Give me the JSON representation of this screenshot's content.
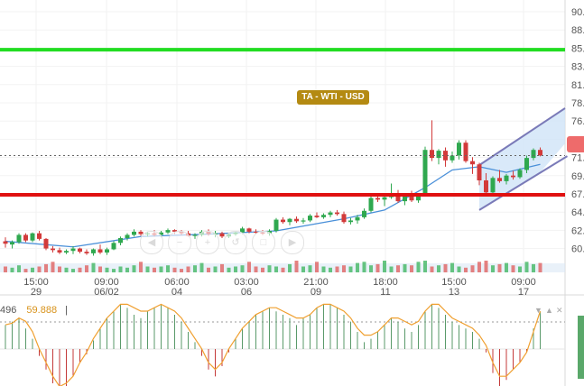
{
  "chart_title": "TA - WTI - USD",
  "y_axis": {
    "ticks": [
      "90.",
      "88.",
      "85.",
      "83.",
      "81.",
      "78.",
      "76.",
      "74.",
      "71.",
      "69.",
      "67.",
      "64.",
      "62.",
      "60."
    ]
  },
  "x_axis": {
    "ticks": [
      {
        "time": "15:00",
        "date": "29"
      },
      {
        "time": "09:00",
        "date": "06/02"
      },
      {
        "time": "06:00",
        "date": "04"
      },
      {
        "time": "03:00",
        "date": "06"
      },
      {
        "time": "21:00",
        "date": "09"
      },
      {
        "time": "18:00",
        "date": "11"
      },
      {
        "time": "15:00",
        "date": "13"
      },
      {
        "time": "09:00",
        "date": "17"
      }
    ]
  },
  "oscillator": {
    "value_1": "496",
    "value_2": "59.888",
    "separator": "|"
  },
  "colors": {
    "resistance": "#22dd22",
    "support": "#e01010",
    "bull": "#2fa84f",
    "bear": "#d23a3a",
    "moving_average": "#4a90d9",
    "channel": "#7a7ab8",
    "channel_fill": "#cfe4f7",
    "oscillator_line": "#f0a030",
    "badge": "#b48a12"
  },
  "nav_controls": [
    "first-icon",
    "zoom-out-icon",
    "zoom-in-icon",
    "zoom-reset-icon",
    "zoom-fit-icon",
    "last-icon"
  ],
  "chart_data": {
    "type": "candlestick",
    "y_range": [
      58.8,
      91.2
    ],
    "levels": {
      "resistance": 85.9,
      "support": 67.8,
      "last_price": 72.7
    },
    "candles": [
      [
        62.0,
        62.5,
        61.2,
        61.7
      ],
      [
        61.6,
        62.1,
        61.1,
        61.9
      ],
      [
        61.9,
        63.0,
        61.7,
        62.8
      ],
      [
        62.8,
        63.0,
        61.9,
        62.1
      ],
      [
        62.1,
        63.1,
        61.9,
        63.0
      ],
      [
        63.0,
        63.3,
        62.1,
        62.3
      ],
      [
        62.3,
        62.4,
        60.9,
        61.1
      ],
      [
        61.1,
        61.4,
        60.6,
        60.9
      ],
      [
        60.9,
        61.2,
        60.4,
        60.6
      ],
      [
        60.6,
        61.0,
        60.4,
        60.8
      ],
      [
        60.8,
        61.4,
        60.4,
        61.1
      ],
      [
        61.1,
        61.2,
        60.5,
        60.7
      ],
      [
        60.7,
        61.0,
        60.3,
        60.5
      ],
      [
        60.5,
        61.1,
        60.2,
        61.0
      ],
      [
        61.0,
        61.6,
        60.4,
        60.6
      ],
      [
        60.6,
        61.2,
        60.3,
        61.0
      ],
      [
        61.0,
        62.0,
        60.9,
        61.8
      ],
      [
        61.8,
        62.6,
        61.5,
        62.4
      ],
      [
        62.4,
        63.0,
        62.1,
        62.8
      ],
      [
        62.8,
        63.5,
        62.6,
        63.2
      ],
      [
        63.2,
        63.4,
        62.7,
        62.9
      ],
      [
        62.9,
        63.2,
        62.6,
        63.0
      ],
      [
        63.0,
        63.4,
        62.6,
        62.8
      ],
      [
        62.8,
        63.3,
        62.5,
        63.1
      ],
      [
        63.1,
        63.6,
        62.9,
        63.4
      ],
      [
        63.4,
        63.5,
        62.9,
        63.2
      ],
      [
        63.2,
        63.4,
        62.8,
        63.0
      ],
      [
        63.0,
        63.3,
        62.6,
        62.7
      ],
      [
        62.7,
        63.0,
        62.3,
        62.8
      ],
      [
        62.8,
        63.4,
        62.6,
        63.2
      ],
      [
        63.2,
        63.5,
        62.7,
        62.9
      ],
      [
        62.9,
        63.3,
        62.5,
        63.0
      ],
      [
        63.0,
        63.2,
        62.4,
        62.6
      ],
      [
        62.6,
        63.0,
        62.4,
        62.9
      ],
      [
        62.9,
        63.3,
        62.7,
        63.1
      ],
      [
        63.1,
        63.8,
        62.9,
        63.6
      ],
      [
        63.6,
        63.7,
        63.0,
        63.2
      ],
      [
        63.2,
        63.5,
        62.9,
        63.1
      ],
      [
        63.1,
        63.4,
        62.8,
        63.0
      ],
      [
        63.0,
        63.5,
        62.7,
        63.3
      ],
      [
        63.3,
        64.9,
        63.1,
        64.7
      ],
      [
        64.7,
        65.0,
        64.2,
        64.4
      ],
      [
        64.4,
        64.9,
        64.0,
        64.8
      ],
      [
        64.8,
        65.1,
        64.3,
        64.5
      ],
      [
        64.5,
        64.9,
        64.2,
        64.6
      ],
      [
        64.6,
        65.4,
        64.4,
        65.2
      ],
      [
        65.2,
        65.6,
        64.9,
        65.0
      ],
      [
        65.0,
        65.5,
        64.8,
        65.3
      ],
      [
        65.3,
        65.8,
        65.0,
        65.6
      ],
      [
        65.6,
        65.9,
        65.2,
        65.4
      ],
      [
        65.4,
        65.7,
        64.2,
        64.4
      ],
      [
        64.4,
        64.9,
        64.1,
        64.6
      ],
      [
        64.6,
        65.3,
        64.2,
        65.0
      ],
      [
        65.0,
        66.1,
        64.8,
        65.8
      ],
      [
        65.8,
        67.7,
        65.6,
        67.4
      ],
      [
        67.4,
        67.8,
        66.9,
        67.2
      ],
      [
        67.2,
        67.9,
        66.4,
        67.5
      ],
      [
        67.5,
        69.2,
        67.3,
        68.0
      ],
      [
        68.0,
        68.4,
        66.8,
        67.0
      ],
      [
        67.0,
        67.9,
        66.5,
        67.7
      ],
      [
        67.7,
        68.3,
        66.9,
        67.1
      ],
      [
        67.1,
        68.0,
        66.8,
        67.9
      ],
      [
        67.9,
        73.8,
        67.7,
        73.4
      ],
      [
        73.4,
        77.1,
        72.0,
        72.4
      ],
      [
        72.4,
        73.5,
        71.6,
        73.3
      ],
      [
        73.3,
        73.7,
        71.3,
        72.1
      ],
      [
        72.1,
        73.2,
        71.8,
        72.7
      ],
      [
        72.7,
        74.6,
        72.2,
        74.3
      ],
      [
        74.3,
        74.6,
        71.8,
        72.0
      ],
      [
        72.0,
        72.5,
        70.4,
        71.6
      ],
      [
        71.6,
        71.8,
        69.0,
        69.6
      ],
      [
        69.6,
        70.5,
        67.7,
        68.1
      ],
      [
        68.1,
        70.1,
        67.9,
        69.9
      ],
      [
        69.9,
        70.9,
        69.3,
        69.5
      ],
      [
        69.5,
        70.4,
        69.1,
        70.2
      ],
      [
        70.2,
        70.8,
        69.7,
        70.0
      ],
      [
        70.0,
        71.1,
        69.8,
        70.9
      ],
      [
        70.9,
        72.7,
        70.5,
        72.4
      ],
      [
        72.4,
        73.6,
        72.1,
        73.4
      ],
      [
        73.4,
        73.7,
        72.6,
        72.7
      ]
    ],
    "moving_average": [
      [
        0,
        62.0
      ],
      [
        10,
        61.3
      ],
      [
        20,
        62.6
      ],
      [
        30,
        62.9
      ],
      [
        40,
        63.3
      ],
      [
        50,
        64.8
      ],
      [
        56,
        65.9
      ],
      [
        62,
        68.7
      ],
      [
        66,
        70.9
      ],
      [
        70,
        71.3
      ],
      [
        74,
        70.6
      ],
      [
        79,
        71.6
      ]
    ],
    "trend_channel": {
      "lower_start": [
        70,
        65.9
      ],
      "lower_end": [
        79,
        70.6
      ],
      "upper_start": [
        70,
        71.5
      ],
      "upper_end": [
        83,
        78.6
      ]
    },
    "volume": [
      5,
      4,
      6,
      3,
      4,
      5,
      7,
      9,
      5,
      4,
      3,
      4,
      6,
      8,
      5,
      4,
      3,
      5,
      4,
      6,
      9,
      5,
      4,
      5,
      6,
      4,
      3,
      5,
      6,
      8,
      4,
      5,
      7,
      4,
      5,
      6,
      9,
      5,
      4,
      6,
      5,
      4,
      7,
      10,
      5,
      6,
      9,
      5,
      4,
      5,
      6,
      5,
      8,
      9,
      6,
      7,
      10,
      5,
      6,
      7,
      6,
      9,
      10,
      5,
      6,
      7,
      8,
      5,
      4,
      6,
      9,
      10,
      6,
      7,
      8,
      6,
      5,
      9,
      7,
      8
    ],
    "oscillator_histogram": [
      14,
      16,
      18,
      12,
      6,
      -4,
      -12,
      -20,
      -28,
      -24,
      -16,
      -8,
      -3,
      5,
      12,
      18,
      22,
      26,
      24,
      20,
      18,
      22,
      24,
      26,
      24,
      20,
      16,
      10,
      4,
      -4,
      -12,
      -16,
      -10,
      -2,
      6,
      12,
      16,
      20,
      22,
      24,
      22,
      20,
      18,
      14,
      18,
      20,
      24,
      26,
      26,
      24,
      20,
      16,
      10,
      4,
      6,
      10,
      14,
      18,
      16,
      12,
      10,
      14,
      22,
      26,
      24,
      20,
      16,
      14,
      12,
      10,
      6,
      -2,
      -14,
      -22,
      -18,
      -12,
      -8,
      -2,
      12,
      22
    ],
    "oscillator_line": [
      12,
      13,
      16,
      14,
      8,
      -2,
      -10,
      -18,
      -24,
      -22,
      -18,
      -10,
      -4,
      4,
      10,
      16,
      20,
      24,
      24,
      22,
      20,
      20,
      22,
      24,
      22,
      20,
      16,
      10,
      4,
      -2,
      -10,
      -14,
      -10,
      -2,
      4,
      10,
      14,
      18,
      20,
      22,
      22,
      20,
      18,
      16,
      16,
      18,
      22,
      24,
      24,
      22,
      20,
      16,
      10,
      6,
      6,
      8,
      12,
      16,
      16,
      14,
      12,
      14,
      20,
      24,
      24,
      20,
      16,
      14,
      12,
      10,
      6,
      0,
      -10,
      -18,
      -18,
      -14,
      -10,
      -4,
      8,
      20
    ]
  }
}
